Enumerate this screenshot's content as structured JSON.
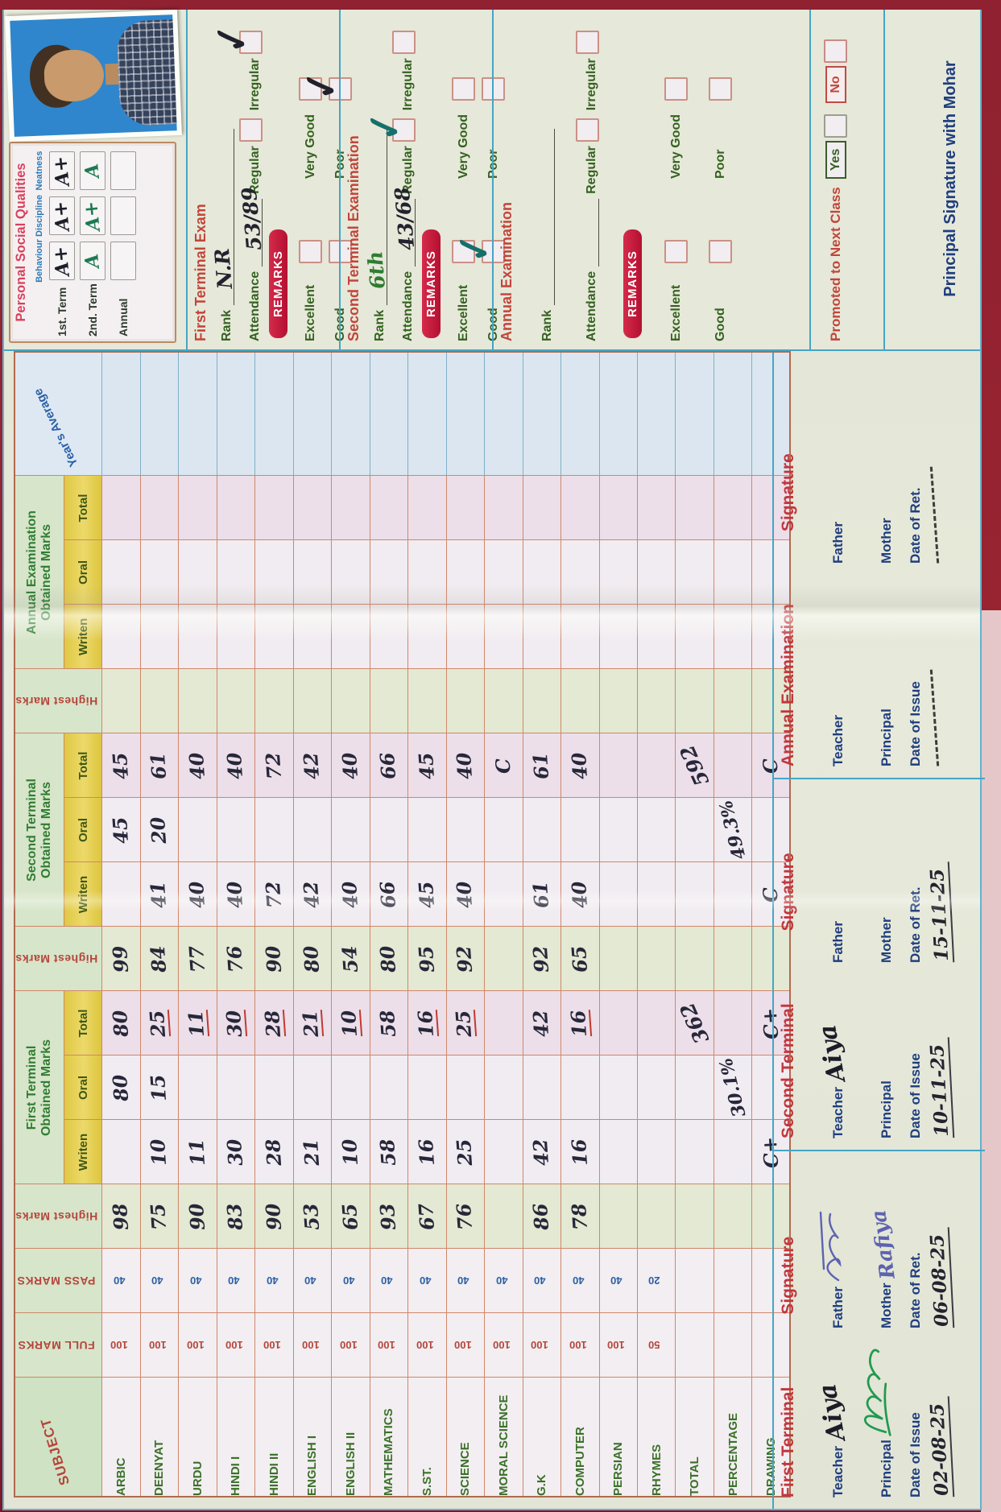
{
  "table": {
    "corner": "SUBJECT",
    "col_headers": {
      "full_marks": "FULL MARKS",
      "pass_marks": "PASS MARKS",
      "highest_marks": "Highest Marks",
      "first_terminal": "First Terminal Obtained Marks",
      "second_terminal": "Second Terminal Obtained Marks",
      "annual_exam": "Annual Examination Obtained Marks",
      "writen": "Writen",
      "oral": "Oral",
      "total": "Total",
      "years_average": "Year's Average"
    },
    "rows": [
      {
        "s": "ARBIC",
        "fm": "100",
        "pm": "40",
        "h1": "98",
        "fw": "",
        "fo": "80",
        "ft": "80",
        "u": false,
        "h2": "99",
        "sw": "",
        "so": "45",
        "st": "45",
        "h3": "",
        "aw": "",
        "ao": "",
        "at": "",
        "ya": ""
      },
      {
        "s": "DEENYAT",
        "fm": "100",
        "pm": "40",
        "h1": "75",
        "fw": "10",
        "fo": "15",
        "ft": "25",
        "u": true,
        "h2": "84",
        "sw": "41",
        "so": "20",
        "st": "61",
        "h3": "",
        "aw": "",
        "ao": "",
        "at": "",
        "ya": ""
      },
      {
        "s": "URDU",
        "fm": "100",
        "pm": "40",
        "h1": "90",
        "fw": "11",
        "fo": "",
        "ft": "11",
        "u": true,
        "h2": "77",
        "sw": "40",
        "so": "",
        "st": "40",
        "h3": "",
        "aw": "",
        "ao": "",
        "at": "",
        "ya": ""
      },
      {
        "s": "HINDI I",
        "fm": "100",
        "pm": "40",
        "h1": "83",
        "fw": "30",
        "fo": "",
        "ft": "30",
        "u": true,
        "h2": "76",
        "sw": "40",
        "so": "",
        "st": "40",
        "h3": "",
        "aw": "",
        "ao": "",
        "at": "",
        "ya": ""
      },
      {
        "s": "HINDI II",
        "fm": "100",
        "pm": "40",
        "h1": "90",
        "fw": "28",
        "fo": "",
        "ft": "28",
        "u": true,
        "h2": "90",
        "sw": "72",
        "so": "",
        "st": "72",
        "h3": "",
        "aw": "",
        "ao": "",
        "at": "",
        "ya": ""
      },
      {
        "s": "ENGLISH I",
        "fm": "100",
        "pm": "40",
        "h1": "53",
        "fw": "21",
        "fo": "",
        "ft": "21",
        "u": true,
        "h2": "80",
        "sw": "42",
        "so": "",
        "st": "42",
        "h3": "",
        "aw": "",
        "ao": "",
        "at": "",
        "ya": ""
      },
      {
        "s": "ENGLISH II",
        "fm": "100",
        "pm": "40",
        "h1": "65",
        "fw": "10",
        "fo": "",
        "ft": "10",
        "u": true,
        "h2": "54",
        "sw": "40",
        "so": "",
        "st": "40",
        "h3": "",
        "aw": "",
        "ao": "",
        "at": "",
        "ya": ""
      },
      {
        "s": "MATHEMATICS",
        "fm": "100",
        "pm": "40",
        "h1": "93",
        "fw": "58",
        "fo": "",
        "ft": "58",
        "u": false,
        "h2": "80",
        "sw": "66",
        "so": "",
        "st": "66",
        "h3": "",
        "aw": "",
        "ao": "",
        "at": "",
        "ya": ""
      },
      {
        "s": "S.ST.",
        "fm": "100",
        "pm": "40",
        "h1": "67",
        "fw": "16",
        "fo": "",
        "ft": "16",
        "u": true,
        "h2": "95",
        "sw": "45",
        "so": "",
        "st": "45",
        "h3": "",
        "aw": "",
        "ao": "",
        "at": "",
        "ya": ""
      },
      {
        "s": "SCIENCE",
        "fm": "100",
        "pm": "40",
        "h1": "76",
        "fw": "25",
        "fo": "",
        "ft": "25",
        "u": true,
        "h2": "92",
        "sw": "40",
        "so": "",
        "st": "40",
        "h3": "",
        "aw": "",
        "ao": "",
        "at": "",
        "ya": ""
      },
      {
        "s": "MORAL SCIENCE",
        "fm": "100",
        "pm": "40",
        "h1": "",
        "fw": "",
        "fo": "",
        "ft": "",
        "u": false,
        "h2": "",
        "sw": "",
        "so": "",
        "st": "C",
        "h3": "",
        "aw": "",
        "ao": "",
        "at": "",
        "ya": ""
      },
      {
        "s": "G.K",
        "fm": "100",
        "pm": "40",
        "h1": "86",
        "fw": "42",
        "fo": "",
        "ft": "42",
        "u": false,
        "h2": "92",
        "sw": "61",
        "so": "",
        "st": "61",
        "h3": "",
        "aw": "",
        "ao": "",
        "at": "",
        "ya": ""
      },
      {
        "s": "COMPUTER",
        "fm": "100",
        "pm": "40",
        "h1": "78",
        "fw": "16",
        "fo": "",
        "ft": "16",
        "u": true,
        "h2": "65",
        "sw": "40",
        "so": "",
        "st": "40",
        "h3": "",
        "aw": "",
        "ao": "",
        "at": "",
        "ya": ""
      },
      {
        "s": "PERSIAN",
        "fm": "100",
        "pm": "40",
        "h1": "",
        "fw": "",
        "fo": "",
        "ft": "",
        "u": false,
        "h2": "",
        "sw": "",
        "so": "",
        "st": "",
        "h3": "",
        "aw": "",
        "ao": "",
        "at": "",
        "ya": ""
      },
      {
        "s": "RHYMES",
        "fm": "50",
        "pm": "20",
        "h1": "",
        "fw": "",
        "fo": "",
        "ft": "",
        "u": false,
        "h2": "",
        "sw": "",
        "so": "",
        "st": "",
        "h3": "",
        "aw": "",
        "ao": "",
        "at": "",
        "ya": ""
      },
      {
        "s": "TOTAL",
        "fm": "",
        "pm": "",
        "h1": "",
        "fw": "",
        "fo": "",
        "ft": "362",
        "u": false,
        "h2": "",
        "sw": "",
        "so": "",
        "st": "592",
        "h3": "",
        "aw": "",
        "ao": "",
        "at": "",
        "ya": ""
      },
      {
        "s": "PERCENTAGE",
        "fm": "",
        "pm": "",
        "h1": "",
        "fw": "",
        "fo": "30.1%",
        "ft": "",
        "u": false,
        "h2": "",
        "sw": "",
        "so": "49.3%",
        "st": "",
        "h3": "",
        "aw": "",
        "ao": "",
        "at": "",
        "ya": ""
      },
      {
        "s": "DRAWING",
        "fm": "",
        "pm": "",
        "h1": "",
        "fw": "C+",
        "fo": "",
        "ft": "C+",
        "u": false,
        "h2": "",
        "sw": "C",
        "so": "",
        "st": "C",
        "h3": "",
        "aw": "",
        "ao": "",
        "at": "",
        "ya": ""
      }
    ]
  },
  "signatures": {
    "labels": {
      "teacher": "Teacher",
      "father": "Father",
      "principal": "Principal",
      "mother": "Mother",
      "doi": "Date of Issue",
      "dor": "Date of Ret.",
      "signature": "Signature"
    },
    "first": {
      "title": "First Terminal",
      "teacher_sign": "Aiya",
      "mother_sign": "Rafiya",
      "doi": "02-08-25",
      "dor": "06-08-25"
    },
    "second": {
      "title": "Second Terminal",
      "teacher_sign": "Aiya",
      "doi": "10-11-25",
      "dor": "15-11-25"
    },
    "annual": {
      "title": "Annual Examination"
    }
  },
  "right": {
    "psq": {
      "title": "Personal Social Qualities",
      "cols": [
        "Behaviour",
        "Discipline",
        "Neatness"
      ],
      "rows": [
        {
          "label": "1st. Term",
          "g1": "A+",
          "g2": "A+",
          "g3": "A+"
        },
        {
          "label": "2nd. Term",
          "g1": "A",
          "g2": "A+",
          "g3": "A"
        },
        {
          "label": "Annual",
          "g1": "",
          "g2": "",
          "g3": ""
        }
      ]
    },
    "labels": {
      "rank": "Rank",
      "attendance": "Attendance",
      "regular": "Regular",
      "irregular": "Irregular",
      "remarks": "REMARKS",
      "excellent": "Excellent",
      "very_good": "Very Good",
      "good": "Good",
      "poor": "Poor"
    },
    "first": {
      "title": "First Terminal Exam",
      "rank": "N.R",
      "attendance": "53/89",
      "regular_tick": "",
      "irregular_tick": "✓",
      "excellent_tick": "",
      "very_good_tick": "",
      "good_tick": "",
      "poor_tick": "✓"
    },
    "second": {
      "title": "Second Terminal Examination",
      "rank": "6th",
      "attendance": "43/68",
      "regular_tick": "✓",
      "irregular_tick": "",
      "excellent_tick": "",
      "very_good_tick": "",
      "good_tick": "✓",
      "poor_tick": ""
    },
    "annual": {
      "title": "Annual Examination",
      "rank": "",
      "attendance": "",
      "regular_tick": "",
      "irregular_tick": "",
      "excellent_tick": "",
      "very_good_tick": "",
      "good_tick": "",
      "poor_tick": ""
    },
    "promoted": {
      "label": "Promoted to Next Class",
      "yes": "Yes",
      "no": "No"
    },
    "principal_line": "Principal Signature with Mohar"
  },
  "colors": {
    "accent_red": "#c2363c",
    "accent_green": "#2f7d32",
    "accent_blue": "#1f3e7e",
    "badge": "#c61f3e",
    "paper": "#e4e6d7",
    "cover": "#9c2531",
    "ink_black": "#23232f",
    "ink_teal": "#15706a"
  }
}
